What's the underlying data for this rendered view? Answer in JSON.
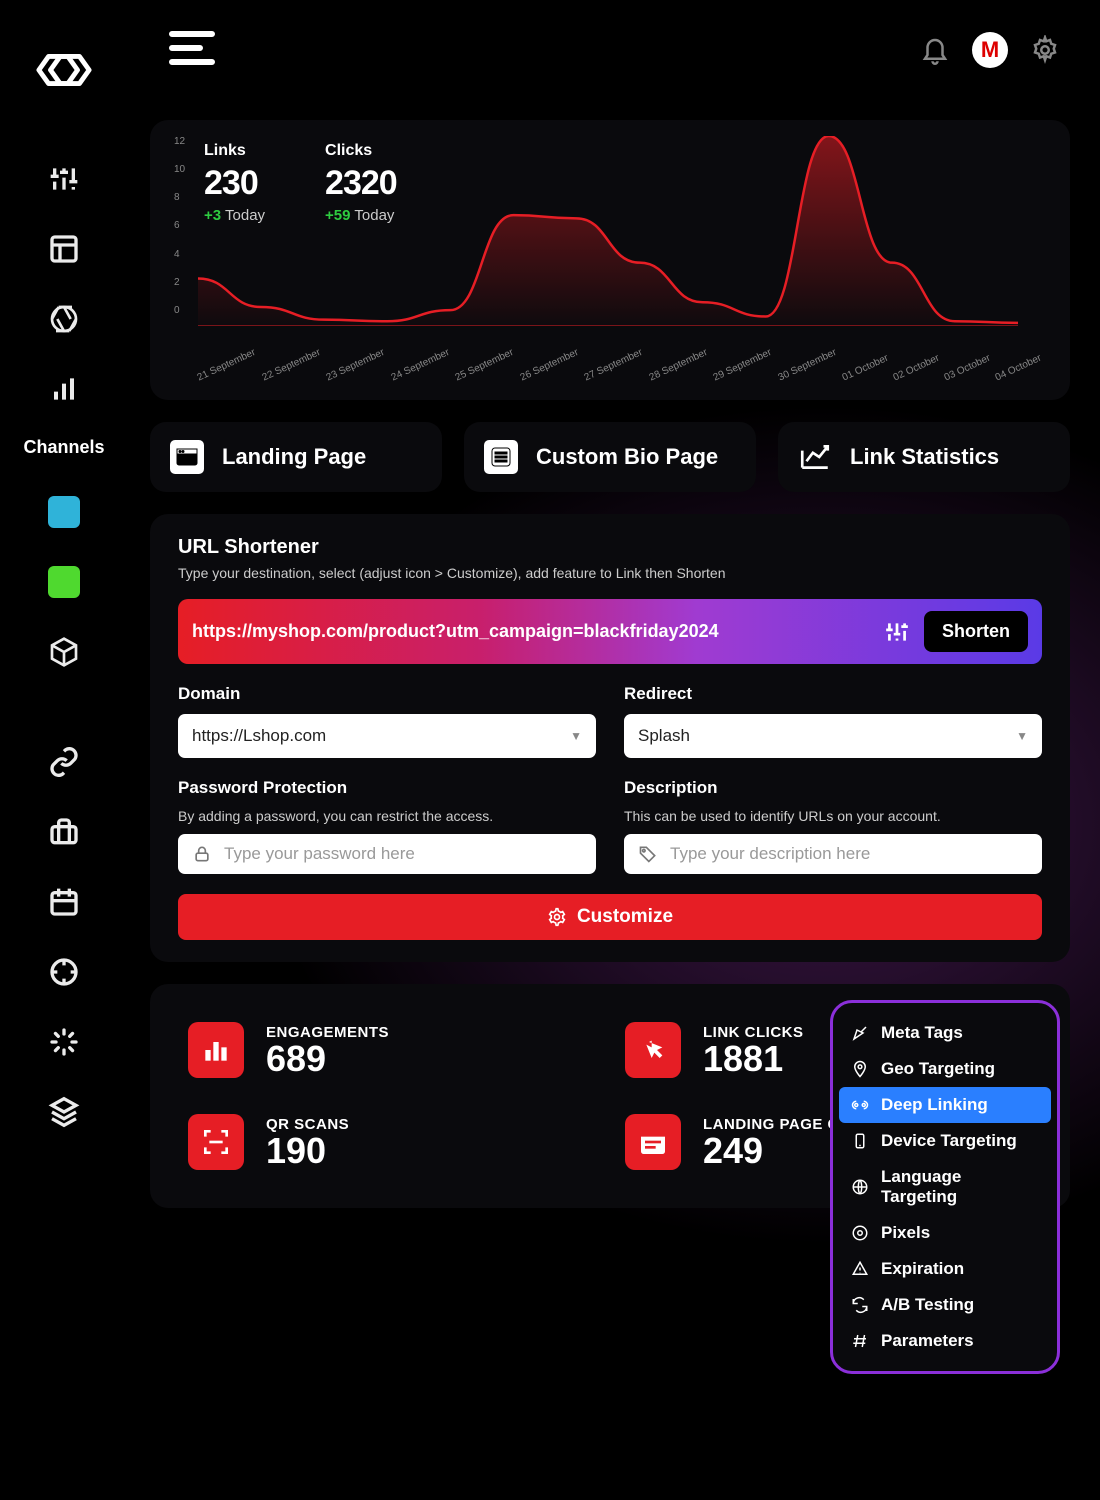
{
  "colors": {
    "accent_red": "#e61e25",
    "accent_blue": "#2a7fff",
    "popover_border": "#8b2fd9",
    "swatch_cyan": "#2fb3d9",
    "swatch_green": "#4fd92f",
    "bg_panel": "#0a0a0d",
    "delta_green": "#2ecc40"
  },
  "topbar": {
    "avatar_initial": "M"
  },
  "sidebar": {
    "label": "Channels"
  },
  "chart": {
    "stats": [
      {
        "label": "Links",
        "value": "230",
        "delta": "+3",
        "today": "Today"
      },
      {
        "label": "Clicks",
        "value": "2320",
        "delta": "+59",
        "today": "Today"
      }
    ],
    "yticks": [
      "12",
      "10",
      "8",
      "6",
      "4",
      "2",
      "0"
    ],
    "xlabels": [
      "21 September",
      "22 September",
      "23 September",
      "24 September",
      "25 September",
      "26 September",
      "27 September",
      "28 September",
      "29 September",
      "30 September",
      "01 October",
      "02 October",
      "03 October",
      "04 October"
    ],
    "series_values": [
      3,
      1.2,
      0.4,
      0.3,
      1,
      7,
      6.8,
      4,
      1.5,
      0.6,
      12,
      4,
      0.3,
      0.2
    ],
    "ymax": 12,
    "line_color": "#e61e25",
    "fill_top": "rgba(230,30,37,0.55)",
    "fill_bottom": "rgba(230,30,37,0.02)"
  },
  "actions": [
    {
      "label": "Landing Page"
    },
    {
      "label": "Custom Bio Page"
    },
    {
      "label": "Link Statistics"
    }
  ],
  "shortener": {
    "title": "URL Shortener",
    "subtitle": "Type your destination, select (adjust icon > Customize), add feature to Link then Shorten",
    "url": "https://myshop.com/product?utm_campaign=blackfriday2024",
    "shorten_label": "Shorten",
    "domain_label": "Domain",
    "domain_value": "https://Lshop.com",
    "redirect_label": "Redirect",
    "redirect_value": "Splash",
    "password_label": "Password Protection",
    "password_hint": "By adding a password, you can restrict the access.",
    "password_placeholder": "Type your password here",
    "description_label": "Description",
    "description_hint": "This can be used to identify URLs on your account.",
    "description_placeholder": "Type your description here",
    "customize_label": "Customize"
  },
  "stats_cards": [
    {
      "label": "ENGAGEMENTS",
      "value": "689"
    },
    {
      "label": "LINK CLICKS",
      "value": "1881"
    },
    {
      "label": "QR SCANS",
      "value": "190"
    },
    {
      "label": "LANDING PAGE CLICKS",
      "value": "249"
    }
  ],
  "popover": {
    "items": [
      "Meta Tags",
      "Geo Targeting",
      "Deep Linking",
      "Device Targeting",
      "Language Targeting",
      "Pixels",
      "Expiration",
      "A/B Testing",
      "Parameters"
    ],
    "selected_index": 2
  }
}
